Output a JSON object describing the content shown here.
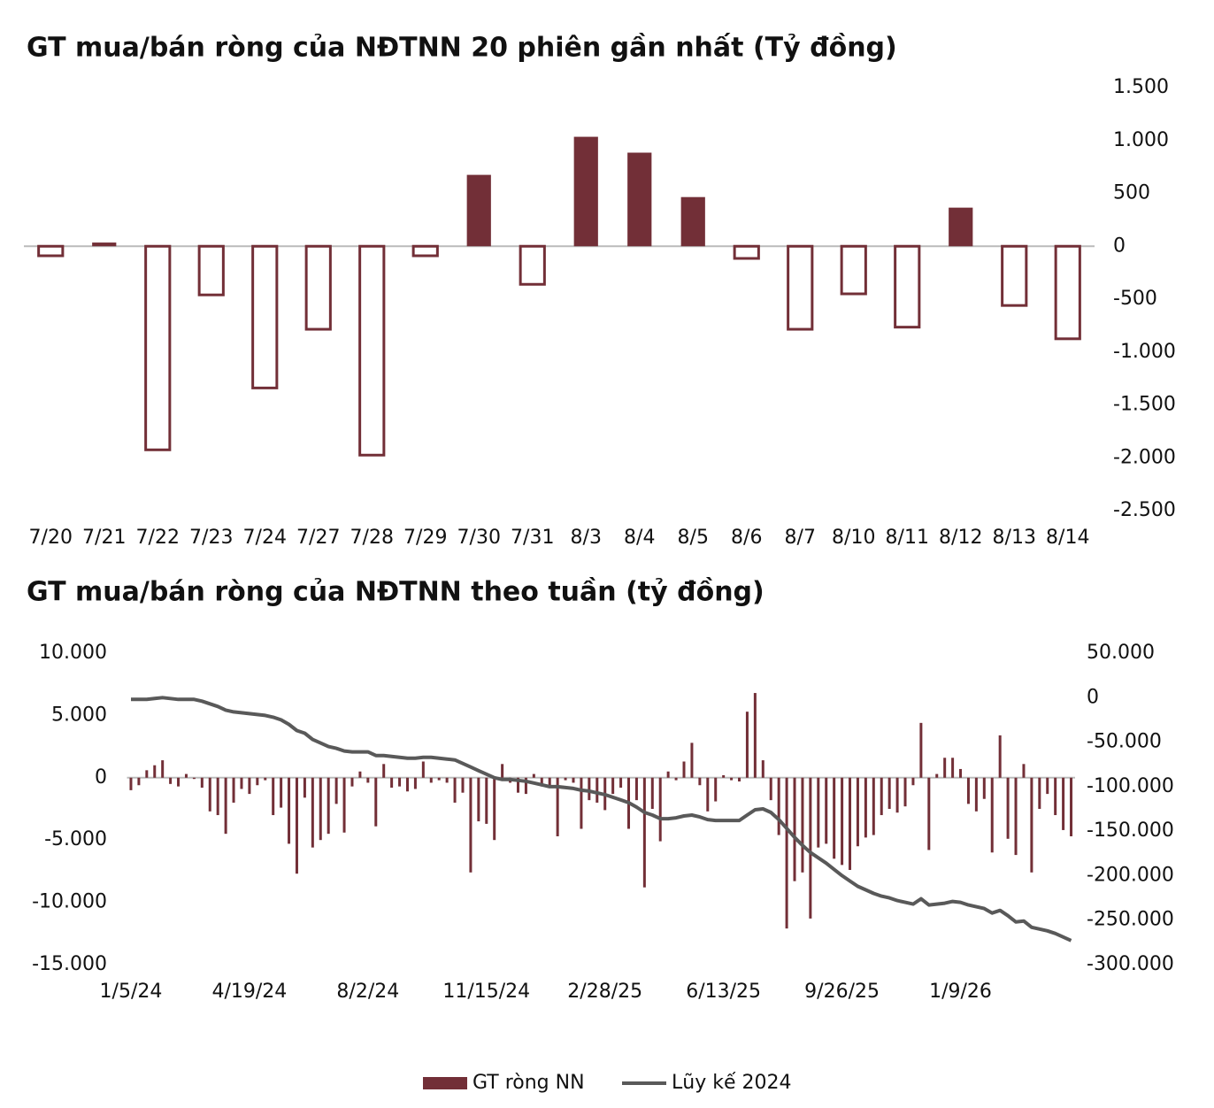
{
  "chart_data": [
    {
      "type": "bar",
      "title": "GT mua/bán ròng của NĐTNN 20 phiên gần nhất (Tỷ đồng)",
      "categories": [
        "7/20",
        "7/21",
        "7/22",
        "7/23",
        "7/24",
        "7/27",
        "7/28",
        "7/29",
        "7/30",
        "7/31",
        "8/3",
        "8/4",
        "8/5",
        "8/6",
        "8/7",
        "8/10",
        "8/11",
        "8/12",
        "8/13",
        "8/14"
      ],
      "values": [
        -90,
        35,
        -1925,
        -460,
        -1340,
        -785,
        -1975,
        -90,
        675,
        -360,
        1035,
        885,
        465,
        -115,
        -785,
        -450,
        -765,
        365,
        -560,
        -875
      ],
      "color": "#722f37",
      "ylim": [
        -2500,
        1500
      ],
      "yticks": [
        {
          "value": 1500,
          "label": "1.500"
        },
        {
          "value": 1000,
          "label": "1.000"
        },
        500,
        0,
        -500,
        {
          "value": -1000,
          "label": "-1.000"
        },
        {
          "value": -1500,
          "label": "-1.500"
        },
        {
          "value": -2000,
          "label": "-2.000"
        },
        {
          "value": -2500,
          "label": "-2.500"
        }
      ],
      "grid": false
    },
    {
      "type": "combo",
      "title": "GT mua/bán ròng của NĐTNN theo tuần (tỷ đồng)",
      "categories": [
        "1/5/24",
        null,
        null,
        null,
        null,
        null,
        null,
        null,
        null,
        null,
        null,
        null,
        null,
        null,
        null,
        "4/19/24",
        null,
        null,
        null,
        null,
        null,
        null,
        null,
        null,
        null,
        null,
        null,
        null,
        null,
        null,
        "8/2/24",
        null,
        null,
        null,
        null,
        null,
        null,
        null,
        null,
        null,
        null,
        null,
        null,
        null,
        null,
        "11/15/24",
        null,
        null,
        null,
        null,
        null,
        null,
        null,
        null,
        null,
        null,
        null,
        null,
        null,
        null,
        "2/28/25",
        null,
        null,
        null,
        null,
        null,
        null,
        null,
        null,
        null,
        null,
        null,
        null,
        null,
        null,
        "6/13/25",
        null,
        null,
        null,
        null,
        null,
        null,
        null,
        null,
        null,
        null,
        null,
        null,
        null,
        null,
        "9/26/25",
        null,
        null,
        null,
        null,
        null,
        null,
        null,
        null,
        null,
        null,
        null,
        null,
        null,
        null,
        "1/9/26",
        null,
        null,
        null,
        null,
        null,
        null,
        null,
        null,
        null,
        null,
        null,
        null,
        null,
        null
      ],
      "series": [
        {
          "name": "GT ròng NN",
          "type": "bar",
          "color": "#722f37",
          "values": [
            -1000,
            -600,
            600,
            1000,
            1400,
            -500,
            -700,
            300,
            -100,
            -800,
            -2700,
            -3000,
            -4500,
            -2000,
            -900,
            -1300,
            -600,
            -200,
            -3000,
            -2400,
            -5300,
            -7700,
            -1600,
            -5600,
            -5000,
            -4500,
            -2100,
            -4400,
            -700,
            500,
            -400,
            -3900,
            1100,
            -800,
            -700,
            -1100,
            -900,
            1300,
            -400,
            -200,
            -400,
            -2000,
            -1200,
            -7600,
            -3500,
            -3700,
            -5000,
            1100,
            -400,
            -1200,
            -1300,
            300,
            -700,
            -700,
            -4700,
            -200,
            -400,
            -4100,
            -1800,
            -2000,
            -2600,
            -1300,
            -800,
            -4100,
            -1800,
            -8800,
            -2500,
            -5100,
            500,
            -200,
            1300,
            2800,
            -600,
            -2700,
            -1900,
            200,
            -200,
            -300,
            5300,
            6800,
            1400,
            -1800,
            -4600,
            -12100,
            -8300,
            -7600,
            -11300,
            -5600,
            -5300,
            -6500,
            -7000,
            -7400,
            -5500,
            -4800,
            -4600,
            -3000,
            -2500,
            -2800,
            -2300,
            -600,
            4400,
            -5800,
            300,
            1600,
            1600,
            700,
            -2100,
            -2700,
            -1700,
            -6000,
            3400,
            -4900,
            -6200,
            1100,
            -7600,
            -2500,
            -1300,
            -3000,
            -4200,
            -4700
          ]
        },
        {
          "name": "Lũy kế 2024",
          "type": "line",
          "color": "#595959",
          "axis": "y2",
          "values": [
            -2000,
            -2000,
            -2000,
            -1000,
            0,
            -1000,
            -2000,
            -2000,
            -2000,
            -4000,
            -7000,
            -10000,
            -14000,
            -16000,
            -17000,
            -18000,
            -19000,
            -20000,
            -22000,
            -25000,
            -30000,
            -37000,
            -40000,
            -47000,
            -51000,
            -55000,
            -57000,
            -60000,
            -61000,
            -61000,
            -61000,
            -65000,
            -65000,
            -66000,
            -67000,
            -68000,
            -68000,
            -67000,
            -67000,
            -68000,
            -69000,
            -70000,
            -74000,
            -78000,
            -82000,
            -86000,
            -90000,
            -92000,
            -92000,
            -93000,
            -94000,
            -96000,
            -98000,
            -100000,
            -100000,
            -101000,
            -102000,
            -104000,
            -105000,
            -107000,
            -109000,
            -112000,
            -115000,
            -118000,
            -123000,
            -129000,
            -132000,
            -136000,
            -136000,
            -135000,
            -133000,
            -132000,
            -134000,
            -137000,
            -138000,
            -138000,
            -138000,
            -138000,
            -132000,
            -126000,
            -125000,
            -129000,
            -137000,
            -147000,
            -157000,
            -166000,
            -174000,
            -180000,
            -186000,
            -193000,
            -200000,
            -206000,
            -212000,
            -216000,
            -220000,
            -223000,
            -225000,
            -228000,
            -230000,
            -232000,
            -226000,
            -233000,
            -232000,
            -231000,
            -229000,
            -230000,
            -233000,
            -235000,
            -237000,
            -242000,
            -239000,
            -245000,
            -252000,
            -251000,
            -258000,
            -260000,
            -262000,
            -265000,
            -269000,
            -273000
          ]
        }
      ],
      "ylim": [
        -15000,
        10000
      ],
      "yticks": [
        {
          "value": 10000,
          "label": "10.000"
        },
        {
          "value": 5000,
          "label": "5.000"
        },
        0,
        {
          "value": -5000,
          "label": "-5.000"
        },
        {
          "value": -10000,
          "label": "-10.000"
        },
        {
          "value": -15000,
          "label": "-15.000"
        }
      ],
      "y2lim": [
        -300000,
        50000
      ],
      "y2ticks": [
        {
          "value": 50000,
          "label": "50.000"
        },
        0,
        {
          "value": -50000,
          "label": "-50.000"
        },
        {
          "value": -100000,
          "label": "-100.000"
        },
        {
          "value": -150000,
          "label": "-150.000"
        },
        {
          "value": -200000,
          "label": "-200.000"
        },
        {
          "value": -250000,
          "label": "-250.000"
        },
        {
          "value": -300000,
          "label": "-300.000"
        }
      ],
      "grid": false,
      "legend": "bottom"
    }
  ]
}
